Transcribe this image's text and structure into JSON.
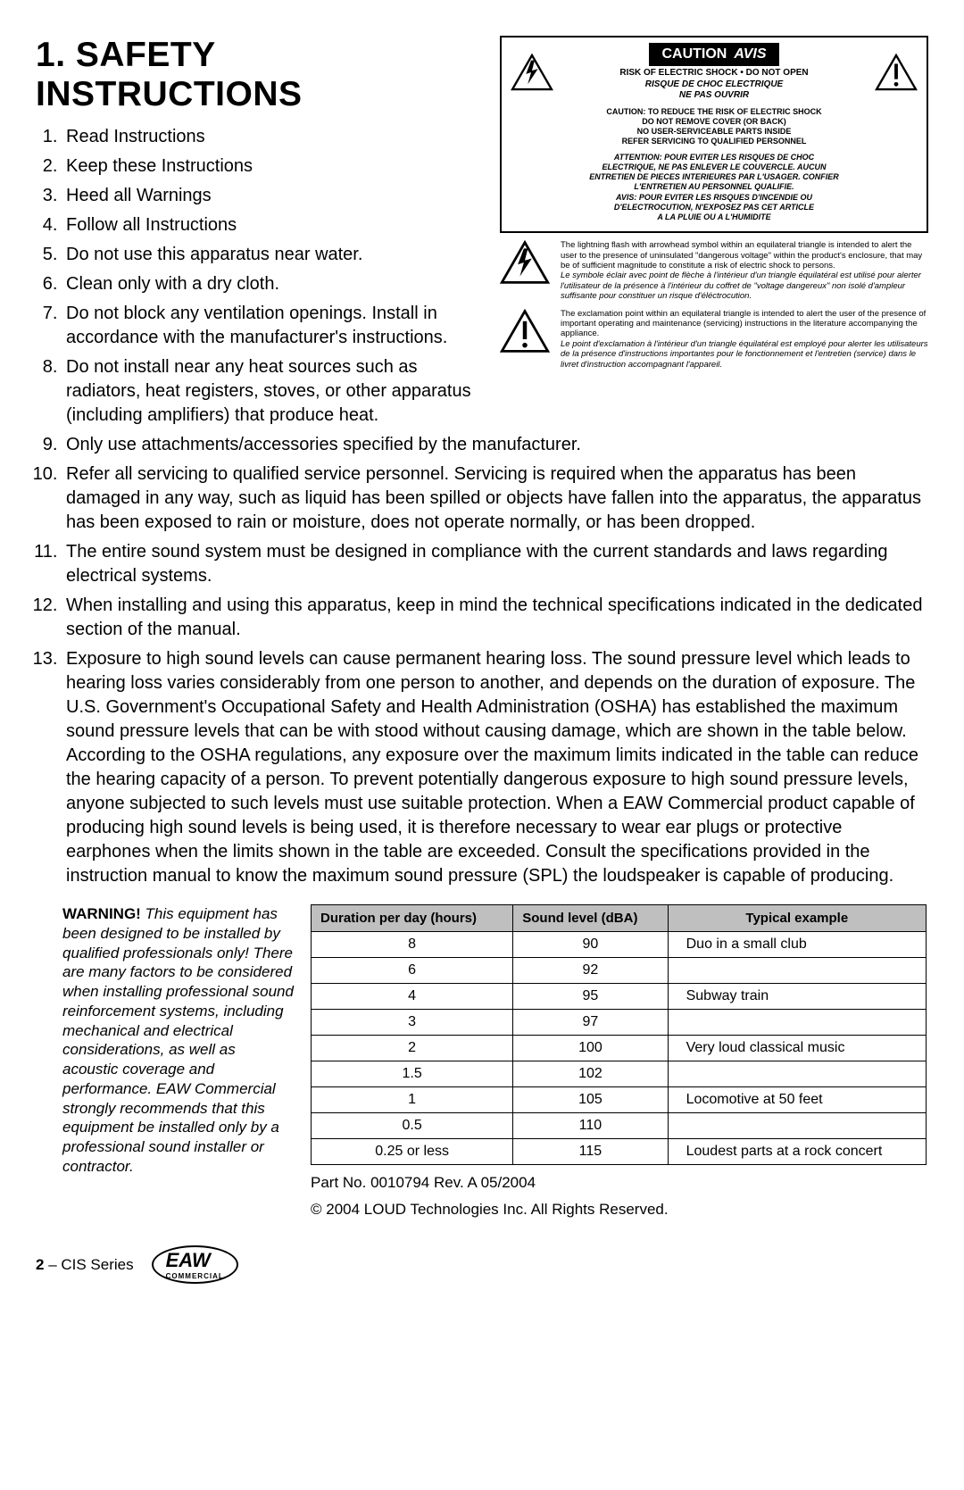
{
  "title": "1. SAFETY INSTRUCTIONS",
  "caution": {
    "header": "CAUTION",
    "header_avis": "AVIS",
    "risk_en": "RISK OF ELECTRIC SHOCK • DO NOT OPEN",
    "risk_fr1": "RISQUE DE CHOC ELECTRIQUE",
    "risk_fr2": "NE PAS OUVRIR",
    "reduce1": "CAUTION: TO REDUCE THE RISK OF ELECTRIC SHOCK",
    "reduce2": "DO NOT REMOVE COVER (OR BACK)",
    "reduce3": "NO USER-SERVICEABLE PARTS INSIDE",
    "reduce4": "REFER SERVICING TO QUALIFIED PERSONNEL",
    "att1": "ATTENTION: POUR EVITER LES RISQUES DE CHOC",
    "att2": "ELECTRIQUE, NE PAS ENLEVER LE COUVERCLE. AUCUN",
    "att3": "ENTRETIEN DE PIECES INTERIEURES PAR L'USAGER. CONFIER",
    "att4": "L'ENTRETIEN AU PERSONNEL QUALIFIE.",
    "att5": "AVIS: POUR EVITER LES RISQUES D'INCENDIE OU",
    "att6": "D'ELECTROCUTION, N'EXPOSEZ PAS CET ARTICLE",
    "att7": "A LA PLUIE OU A L'HUMIDITE"
  },
  "symbol1": {
    "en": "The lightning flash with arrowhead symbol within an equilateral triangle is intended to alert the user to the presence of uninsulated \"dangerous voltage\" within the product's enclosure, that may be of sufficient magnitude to constitute a risk of electric shock to persons.",
    "fr": "Le symbole éclair avec point de flèche à l'intérieur d'un triangle équilatéral est utilisé pour alerter l'utilisateur de la présence à l'intérieur du coffret de \"voltage dangereux\" non isolé d'ampleur suffisante pour constituer un risque d'éléctrocution."
  },
  "symbol2": {
    "en": "The exclamation point within an equilateral triangle is intended to alert the user of the presence of important operating and maintenance (servicing) instructions in the literature accompanying the appliance.",
    "fr": "Le point d'exclamation à l'intérieur d'un triangle équilatéral est employé pour alerter les utilisateurs de la présence d'instructions importantes pour le fonctionnement et l'entretien (service) dans le livret d'instruction accompagnant l'appareil."
  },
  "instructions": [
    "Read Instructions",
    "Keep these Instructions",
    "Heed all Warnings",
    "Follow all Instructions",
    "Do not use this apparatus near water.",
    "Clean only with a dry cloth.",
    "Do not block any ventilation openings. Install in accordance with the manufacturer's instructions.",
    "Do not install near any heat sources such as radiators, heat registers, stoves, or other apparatus (including amplifiers) that produce heat.",
    "Only use attachments/accessories specified by the manufacturer.",
    "Refer all servicing to qualified service personnel. Servicing is required when the apparatus has been damaged in any way, such as liquid has been spilled or objects have fallen into the apparatus, the apparatus has been exposed to rain or moisture, does not operate normally, or has been dropped.",
    "The entire sound system must be designed in compliance with the current standards and laws regarding electrical systems.",
    "When installing and using this apparatus, keep in mind the technical specifications indicated in the dedicated section of the manual.",
    "Exposure to high sound levels can cause permanent hearing loss. The sound pressure level which leads to hearing loss varies considerably from one person to another, and depends on the duration of exposure. The U.S. Government's Occupational Safety and Health Administration (OSHA) has established the maximum sound pressure levels that can be with stood without causing damage, which are shown in the table below. According to the OSHA regulations, any exposure over the maximum limits indicated in the table can reduce the hearing capacity of a person. To prevent potentially dangerous exposure to high sound pressure levels, anyone subjected to such levels must use suitable protection. When a EAW Commercial product capable of producing high sound levels is being used, it is therefore necessary to wear ear plugs or protective earphones when the limits shown in the table are exceeded. Consult the specifications provided in the instruction manual to know the maximum sound pressure (SPL) the loudspeaker is capable of producing."
  ],
  "warning": {
    "title": "WARNING!",
    "body": " This equipment has been designed to be installed by qualified professionals only! There are many factors to be considered when installing professional sound reinforcement systems, including mechanical and electrical considerations, as well as acoustic coverage and performance. EAW Commercial strongly recommends that this equipment be installed only by a professional sound installer or contractor."
  },
  "table": {
    "headers": [
      "Duration per day (hours)",
      "Sound level (dBA)",
      "Typical example"
    ],
    "rows": [
      [
        "8",
        "90",
        "Duo in a small club"
      ],
      [
        "6",
        "92",
        ""
      ],
      [
        "4",
        "95",
        "Subway train"
      ],
      [
        "3",
        "97",
        ""
      ],
      [
        "2",
        "100",
        "Very loud classical music"
      ],
      [
        "1.5",
        "102",
        ""
      ],
      [
        "1",
        "105",
        "Locomotive at 50 feet"
      ],
      [
        "0.5",
        "110",
        ""
      ],
      [
        "0.25 or less",
        "115",
        "Loudest parts at a rock concert"
      ]
    ]
  },
  "part_no": "Part No. 0010794  Rev. A  05/2004",
  "copyright": "© 2004 LOUD Technologies Inc.  All Rights Reserved.",
  "footer_page": "2",
  "footer_series": " – CIS Series",
  "logo_main": "EAW",
  "logo_sub": "COMMERCIAL"
}
